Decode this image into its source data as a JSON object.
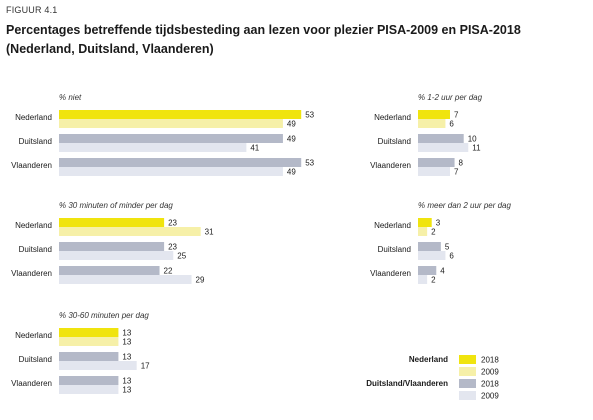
{
  "figure_label": "FIGUUR 4.1",
  "title": "Percentages betreffende tijdsbesteding aan lezen voor plezier PISA-2009 en PISA-2018 (Nederland, Duitsland, Vlaanderen)",
  "colors": {
    "nl_2018": "#f0e40e",
    "nl_2009": "#f6f0a8",
    "other_2018": "#b4b9c8",
    "other_2009": "#e3e6ef"
  },
  "chart_data": [
    {
      "type": "bar",
      "title": "% niet",
      "categories": [
        "Nederland",
        "Duitsland",
        "Vlaanderen"
      ],
      "series": [
        {
          "name": "2018",
          "values": [
            53,
            49,
            53
          ]
        },
        {
          "name": "2009",
          "values": [
            49,
            41,
            49
          ]
        }
      ]
    },
    {
      "type": "bar",
      "title": "% 30 minuten of minder per dag",
      "categories": [
        "Nederland",
        "Duitsland",
        "Vlaanderen"
      ],
      "series": [
        {
          "name": "2018",
          "values": [
            23,
            23,
            22
          ]
        },
        {
          "name": "2009",
          "values": [
            31,
            25,
            29
          ]
        }
      ]
    },
    {
      "type": "bar",
      "title": "% 30-60 minuten per dag",
      "categories": [
        "Nederland",
        "Duitsland",
        "Vlaanderen"
      ],
      "series": [
        {
          "name": "2018",
          "values": [
            13,
            13,
            13
          ]
        },
        {
          "name": "2009",
          "values": [
            13,
            17,
            13
          ]
        }
      ]
    },
    {
      "type": "bar",
      "title": "% 1-2 uur per dag",
      "categories": [
        "Nederland",
        "Duitsland",
        "Vlaanderen"
      ],
      "series": [
        {
          "name": "2018",
          "values": [
            7,
            10,
            8
          ]
        },
        {
          "name": "2009",
          "values": [
            6,
            11,
            7
          ]
        }
      ]
    },
    {
      "type": "bar",
      "title": "% meer dan 2 uur per dag",
      "categories": [
        "Nederland",
        "Duitsland",
        "Vlaanderen"
      ],
      "series": [
        {
          "name": "2018",
          "values": [
            3,
            5,
            4
          ]
        },
        {
          "name": "2009",
          "values": [
            2,
            6,
            2
          ]
        }
      ]
    }
  ],
  "legend": {
    "groups": [
      {
        "label": "Nederland",
        "years": [
          "2018",
          "2009"
        ]
      },
      {
        "label": "Duitsland/Vlaanderen",
        "years": [
          "2018",
          "2009"
        ]
      }
    ]
  }
}
